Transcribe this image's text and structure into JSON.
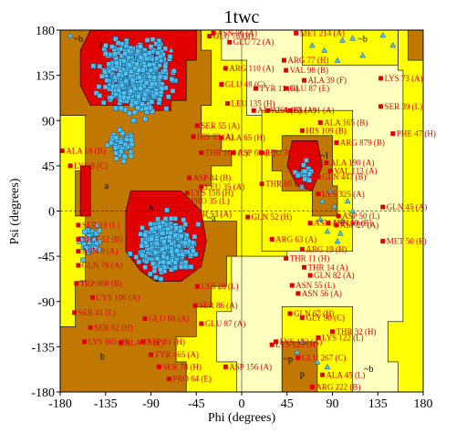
{
  "chart_data": {
    "type": "scatter",
    "title": "1twc",
    "xlabel": "Phi (degrees)",
    "ylabel": "Psi (degrees)",
    "xlim": [
      -180,
      180
    ],
    "ylim": [
      -180,
      180
    ],
    "xticks": [
      -180,
      -135,
      -90,
      -45,
      0,
      45,
      90,
      135,
      180
    ],
    "yticks": [
      -180,
      -135,
      -90,
      -45,
      0,
      45,
      90,
      135,
      180
    ],
    "xtick_labels": [
      "-180",
      "-135",
      "-90",
      "-45",
      "0",
      "45",
      "90",
      "135",
      "180"
    ],
    "ytick_labels": [
      "-180",
      "-135",
      "-90",
      "-45",
      "0",
      "45",
      "90",
      "135",
      "180"
    ],
    "colors": {
      "most_favoured": "#e00000",
      "additional_allowed": "#c07800",
      "generously_allowed": "#ffff00",
      "disallowed": "#ffffc0",
      "residue_marker": "#50c0f0",
      "outlier_label": "#e00000"
    },
    "region_labels": [
      {
        "text": "~b",
        "phi": -162,
        "psi": 168
      },
      {
        "text": "b",
        "phi": -138,
        "psi": 162
      },
      {
        "text": "~b",
        "phi": 120,
        "psi": 168
      },
      {
        "text": "~l",
        "phi": 82,
        "psi": 52
      },
      {
        "text": "l",
        "phi": 58,
        "psi": 38
      },
      {
        "text": "a",
        "phi": -134,
        "psi": 22
      },
      {
        "text": "A",
        "phi": -90,
        "psi": 0
      },
      {
        "text": "~a",
        "phi": -30,
        "psi": -10
      },
      {
        "text": "b",
        "phi": -138,
        "psi": -148
      },
      {
        "text": "~p",
        "phi": 46,
        "psi": -150
      },
      {
        "text": "p",
        "phi": 60,
        "psi": -165
      },
      {
        "text": "~b",
        "phi": 126,
        "psi": -160
      }
    ],
    "series": [
      {
        "name": "residues",
        "marker": "square",
        "clusters": [
          {
            "phi_center": -103,
            "psi_center": 135,
            "count": 650
          },
          {
            "phi_center": -75,
            "psi_center": -34,
            "count": 620
          },
          {
            "phi_center": 62,
            "psi_center": 35,
            "count": 16
          },
          {
            "phi_center": -120,
            "psi_center": 65,
            "count": 40
          },
          {
            "phi_center": -150,
            "psi_center": -30,
            "count": 35
          }
        ]
      },
      {
        "name": "glycine",
        "marker": "triangle",
        "points": [
          [
            80,
            10
          ],
          [
            92,
            5
          ],
          [
            100,
            -10
          ],
          [
            85,
            -20
          ],
          [
            110,
            0
          ],
          [
            95,
            -30
          ],
          [
            88,
            20
          ],
          [
            105,
            10
          ],
          [
            78,
            -8
          ],
          [
            98,
            -22
          ],
          [
            82,
            160
          ],
          [
            100,
            170
          ],
          [
            120,
            155
          ],
          [
            140,
            175
          ],
          [
            150,
            165
          ],
          [
            70,
            165
          ],
          [
            110,
            172
          ],
          [
            95,
            150
          ],
          [
            -70,
            160
          ],
          [
            -80,
            150
          ],
          [
            -170,
            175
          ],
          [
            60,
            -130
          ],
          [
            75,
            -150
          ],
          [
            55,
            -140
          ],
          [
            85,
            -155
          ]
        ]
      }
    ],
    "outliers": [
      {
        "label": "ASN 96 (A)",
        "phi": -28,
        "psi": 177
      },
      {
        "label": "GLU 76 (B)",
        "phi": -32,
        "psi": 174
      },
      {
        "label": "GLU 72 (A)",
        "phi": -12,
        "psi": 168
      },
      {
        "label": "MET 214 (A)",
        "phi": 54,
        "psi": 177
      },
      {
        "label": "ARG 77 (H)",
        "phi": 42,
        "psi": 150
      },
      {
        "label": "ARG 110 (A)",
        "phi": -16,
        "psi": 142
      },
      {
        "label": "VAL 98 (B)",
        "phi": 44,
        "psi": 140
      },
      {
        "label": "ALA 39 (F)",
        "phi": 62,
        "psi": 130
      },
      {
        "label": "GLU 48 (C)",
        "phi": -20,
        "psi": 126
      },
      {
        "label": "TYR 11 (B)",
        "phi": 14,
        "psi": 122
      },
      {
        "label": "GLU 87 (E)",
        "phi": 44,
        "psi": 122
      },
      {
        "label": "LYS 73 (A)",
        "phi": 138,
        "psi": 132
      },
      {
        "label": "LEU 135 (H)",
        "phi": -14,
        "psi": 107
      },
      {
        "label": "ALA 264 (B)",
        "phi": 12,
        "psi": 100
      },
      {
        "label": "ALA 165 (A)",
        "phi": 26,
        "psi": 100
      },
      {
        "label": "GLU 91 (A)",
        "phi": 48,
        "psi": 100
      },
      {
        "label": "ALA 165 (B)",
        "phi": 78,
        "psi": 88
      },
      {
        "label": "SER 39 (L)",
        "phi": 138,
        "psi": 104
      },
      {
        "label": "HIS 109 (B)",
        "phi": 60,
        "psi": 80
      },
      {
        "label": "SER 55 (A)",
        "phi": -44,
        "psi": 85
      },
      {
        "label": "HIS 33 (A)",
        "phi": -48,
        "psi": 74
      },
      {
        "label": "ALA 65 (H)",
        "phi": -20,
        "psi": 73
      },
      {
        "label": "PHE 47 (H)",
        "phi": 150,
        "psi": 77
      },
      {
        "label": "ALA 16 (B)",
        "phi": -178,
        "psi": 60
      },
      {
        "label": "THR 108 (L)",
        "phi": -40,
        "psi": 58
      },
      {
        "label": "ASP 66 (H)",
        "phi": -8,
        "psi": 58
      },
      {
        "label": "LEU 361 (B)",
        "phi": 20,
        "psi": 58
      },
      {
        "label": "ARG 879 (B)",
        "phi": 94,
        "psi": 68
      },
      {
        "label": "LYS 9 (C)",
        "phi": -170,
        "psi": 45
      },
      {
        "label": "ALA 190 (A)",
        "phi": 84,
        "psi": 48
      },
      {
        "label": "VAL 113 (A)",
        "phi": 88,
        "psi": 40
      },
      {
        "label": "ASP 84 (B)",
        "phi": -52,
        "psi": 33
      },
      {
        "label": "LEU 35 (A)",
        "phi": -40,
        "psi": 24
      },
      {
        "label": "THR 69 (E)",
        "phi": 20,
        "psi": 27
      },
      {
        "label": "GLN 447 (B)",
        "phi": 76,
        "psi": 34
      },
      {
        "label": "LYS 158 (H)",
        "phi": -54,
        "psi": 18
      },
      {
        "label": "PRO 35 (L)",
        "phi": -54,
        "psi": 10
      },
      {
        "label": "LYS 325 (A)",
        "phi": 76,
        "psi": 17
      },
      {
        "label": "GLN 45 (A)",
        "phi": 140,
        "psi": 4
      },
      {
        "label": "GLN 52 (H)",
        "phi": 6,
        "psi": -6
      },
      {
        "label": "SER 53 (A)",
        "phi": -52,
        "psi": -3
      },
      {
        "label": "ASP 50 (L)",
        "phi": 96,
        "psi": -5
      },
      {
        "label": "ASN 116 (A)",
        "phi": 68,
        "psi": -12
      },
      {
        "label": "ASN 90 (B)",
        "phi": 86,
        "psi": -12
      },
      {
        "label": "SER 18 (L)",
        "phi": -162,
        "psi": -14
      },
      {
        "label": "ASP 27 (A)",
        "phi": 94,
        "psi": -14
      },
      {
        "label": "MET 52 (B)",
        "phi": -162,
        "psi": -28
      },
      {
        "label": "MET 50 (E)",
        "phi": 140,
        "psi": -30
      },
      {
        "label": "ARG 63 (A)",
        "phi": 30,
        "psi": -28
      },
      {
        "label": "ARG 19 (H)",
        "phi": 60,
        "psi": -38
      },
      {
        "label": "THR 11 (H)",
        "phi": 44,
        "psi": -47
      },
      {
        "label": "THR 14 (A)",
        "phi": 62,
        "psi": -56
      },
      {
        "label": "ASN 9 (A)",
        "phi": -162,
        "psi": -40
      },
      {
        "label": "GLN 79 (A)",
        "phi": -162,
        "psi": -54
      },
      {
        "label": "GLN 82 (A)",
        "phi": 68,
        "psi": -64
      },
      {
        "label": "TRP 868 (B)",
        "phi": -164,
        "psi": -72
      },
      {
        "label": "ASN 55 (L)",
        "phi": 50,
        "psi": -74
      },
      {
        "label": "ASN 56 (A)",
        "phi": 56,
        "psi": -82
      },
      {
        "label": "CYS 106 (A)",
        "phi": -148,
        "psi": -86
      },
      {
        "label": "LYS 28 (L)",
        "phi": -44,
        "psi": -75
      },
      {
        "label": "SER 86 (A)",
        "phi": -46,
        "psi": -94
      },
      {
        "label": "SER 41 (L)",
        "phi": -166,
        "psi": -101
      },
      {
        "label": "GLN 67 (H)",
        "phi": 48,
        "psi": -102
      },
      {
        "label": "GLY 90 (C)",
        "phi": 60,
        "psi": -106
      },
      {
        "label": "SER 62 (H)",
        "phi": -150,
        "psi": -116
      },
      {
        "label": "GLU 60 (A)",
        "phi": -96,
        "psi": -107
      },
      {
        "label": "GLU 87 (A)",
        "phi": -40,
        "psi": -112
      },
      {
        "label": "THR 32 (H)",
        "phi": 90,
        "psi": -120
      },
      {
        "label": "LYS 865 (B)",
        "phi": -156,
        "psi": -130
      },
      {
        "label": "LYS 122 (A)",
        "phi": 34,
        "psi": -130
      },
      {
        "label": "LYS 122 (L)",
        "phi": 76,
        "psi": -126
      },
      {
        "label": "ALA 77 (L)",
        "phi": -120,
        "psi": -131
      },
      {
        "label": "ASP 81 (H)",
        "phi": -98,
        "psi": -130
      },
      {
        "label": "GLU 267 (C)",
        "phi": 56,
        "psi": -146
      },
      {
        "label": "LYS 123 (H)",
        "phi": 30,
        "psi": -133
      },
      {
        "label": "TYR 465 (A)",
        "phi": -90,
        "psi": -143
      },
      {
        "label": "SER 78 (H)",
        "phi": -82,
        "psi": -155
      },
      {
        "label": "ASP 156 (A)",
        "phi": -16,
        "psi": -155
      },
      {
        "label": "ALA 45 (L)",
        "phi": 80,
        "psi": -163
      },
      {
        "label": "PRO 64 (E)",
        "phi": -72,
        "psi": -167
      },
      {
        "label": "ARG 222 (B)",
        "phi": 70,
        "psi": -175
      }
    ]
  }
}
